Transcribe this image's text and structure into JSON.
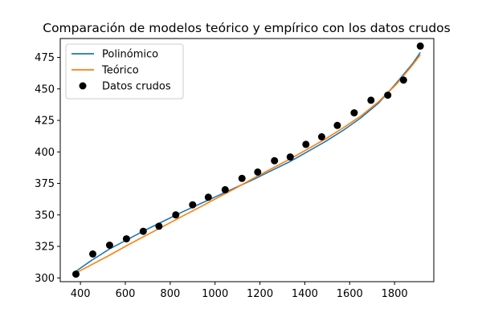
{
  "chart_data": {
    "type": "line",
    "title": "Comparación de modelos teórico y empírico con los datos crudos",
    "xlabel": "",
    "ylabel": "",
    "xlim": [
      310,
      1975
    ],
    "ylim": [
      297,
      490
    ],
    "xticks": [
      400,
      600,
      800,
      1000,
      1200,
      1400,
      1600,
      1800
    ],
    "yticks": [
      300,
      325,
      350,
      375,
      400,
      425,
      450,
      475
    ],
    "grid": false,
    "legend_position": "top-left",
    "series": [
      {
        "name": "Polinómico",
        "kind": "line",
        "color": "#1f77b4",
        "x": [
          370,
          450,
          530,
          610,
          690,
          770,
          850,
          930,
          1010,
          1090,
          1170,
          1250,
          1330,
          1410,
          1490,
          1570,
          1650,
          1730,
          1810,
          1880,
          1915
        ],
        "y": [
          304,
          314,
          323,
          330.5,
          338,
          345,
          352,
          358.5,
          365,
          371.5,
          378,
          385,
          392,
          400,
          408,
          417,
          427,
          439,
          455,
          470,
          479
        ]
      },
      {
        "name": "Teórico",
        "kind": "line",
        "color": "#ff7f0e",
        "x": [
          370,
          450,
          530,
          610,
          690,
          770,
          850,
          930,
          1010,
          1090,
          1170,
          1250,
          1330,
          1410,
          1490,
          1570,
          1650,
          1730,
          1810,
          1880,
          1915
        ],
        "y": [
          303,
          310.5,
          318,
          326,
          333.5,
          341,
          348.5,
          356,
          363.5,
          371,
          379,
          386.5,
          394,
          402,
          410,
          419,
          428.5,
          440,
          454,
          469,
          477
        ]
      },
      {
        "name": "Datos crudos",
        "kind": "scatter",
        "color": "#000000",
        "x": [
          380,
          455,
          530,
          605,
          680,
          750,
          825,
          900,
          970,
          1045,
          1120,
          1190,
          1265,
          1335,
          1405,
          1475,
          1545,
          1620,
          1695,
          1770,
          1840,
          1915
        ],
        "y": [
          303,
          319,
          326,
          331,
          337,
          341,
          350,
          358,
          364,
          370,
          379,
          384,
          393,
          396,
          406,
          412,
          421,
          431,
          441,
          445,
          457,
          484
        ]
      }
    ]
  }
}
